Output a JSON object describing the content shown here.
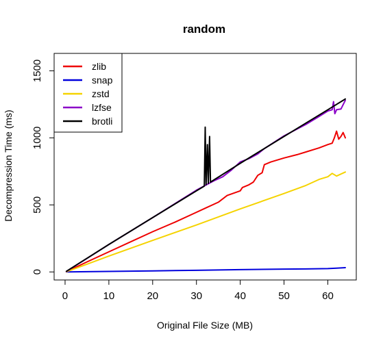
{
  "chart_data": {
    "type": "line",
    "title": "random",
    "xlabel": "Original File Size (MB)",
    "ylabel": "Decompression Time (ms)",
    "xlim": [
      -2.5,
      66.5
    ],
    "ylim": [
      -60,
      1630
    ],
    "x_ticks": [
      0,
      10,
      20,
      30,
      40,
      50,
      60
    ],
    "y_ticks": [
      0,
      500,
      1000,
      1500
    ],
    "grid": false,
    "legend_position": "top-left",
    "series": [
      {
        "name": "zlib",
        "color": "#ee0000",
        "points": [
          [
            0.3,
            2
          ],
          [
            5,
            75
          ],
          [
            10,
            150
          ],
          [
            15,
            225
          ],
          [
            20,
            300
          ],
          [
            25,
            370
          ],
          [
            30,
            445
          ],
          [
            32,
            475
          ],
          [
            35,
            520
          ],
          [
            37,
            570
          ],
          [
            40,
            605
          ],
          [
            40.5,
            630
          ],
          [
            42,
            650
          ],
          [
            43,
            670
          ],
          [
            44,
            720
          ],
          [
            45,
            740
          ],
          [
            45.5,
            800
          ],
          [
            47,
            820
          ],
          [
            50,
            850
          ],
          [
            53,
            875
          ],
          [
            55,
            895
          ],
          [
            58,
            925
          ],
          [
            60,
            950
          ],
          [
            61,
            960
          ],
          [
            61.5,
            1000
          ],
          [
            62,
            1050
          ],
          [
            62.5,
            990
          ],
          [
            63,
            1010
          ],
          [
            63.5,
            1040
          ],
          [
            64,
            1000
          ]
        ]
      },
      {
        "name": "snap",
        "color": "#0000dd",
        "points": [
          [
            0.3,
            0
          ],
          [
            10,
            4
          ],
          [
            20,
            8
          ],
          [
            30,
            12
          ],
          [
            40,
            17
          ],
          [
            50,
            21
          ],
          [
            55,
            22
          ],
          [
            60,
            25
          ],
          [
            62,
            28
          ],
          [
            64,
            32
          ]
        ]
      },
      {
        "name": "zstd",
        "color": "#f5d300",
        "points": [
          [
            0.3,
            1
          ],
          [
            10,
            118
          ],
          [
            20,
            235
          ],
          [
            30,
            350
          ],
          [
            40,
            470
          ],
          [
            50,
            585
          ],
          [
            55,
            645
          ],
          [
            58,
            690
          ],
          [
            60,
            710
          ],
          [
            61,
            735
          ],
          [
            62,
            715
          ],
          [
            64,
            745
          ]
        ]
      },
      {
        "name": "lzfse",
        "color": "#8a00c8",
        "points": [
          [
            0.3,
            3
          ],
          [
            10,
            205
          ],
          [
            20,
            405
          ],
          [
            30,
            610
          ],
          [
            32,
            645
          ],
          [
            34,
            680
          ],
          [
            36,
            710
          ],
          [
            38,
            760
          ],
          [
            40,
            820
          ],
          [
            42,
            845
          ],
          [
            44,
            880
          ],
          [
            45.5,
            920
          ],
          [
            50,
            1015
          ],
          [
            55,
            1100
          ],
          [
            58,
            1160
          ],
          [
            60,
            1200
          ],
          [
            61,
            1210
          ],
          [
            61.3,
            1270
          ],
          [
            61.6,
            1180
          ],
          [
            62,
            1210
          ],
          [
            63,
            1215
          ],
          [
            64,
            1280
          ]
        ]
      },
      {
        "name": "brotli",
        "color": "#000000",
        "points": [
          [
            0.3,
            5
          ],
          [
            10,
            205
          ],
          [
            20,
            405
          ],
          [
            30,
            605
          ],
          [
            31.8,
            640
          ],
          [
            32,
            1080
          ],
          [
            32.2,
            650
          ],
          [
            32.5,
            950
          ],
          [
            32.7,
            660
          ],
          [
            33,
            1010
          ],
          [
            33.2,
            670
          ],
          [
            40,
            810
          ],
          [
            50,
            1010
          ],
          [
            55,
            1110
          ],
          [
            60,
            1210
          ],
          [
            64,
            1290
          ]
        ]
      }
    ]
  }
}
